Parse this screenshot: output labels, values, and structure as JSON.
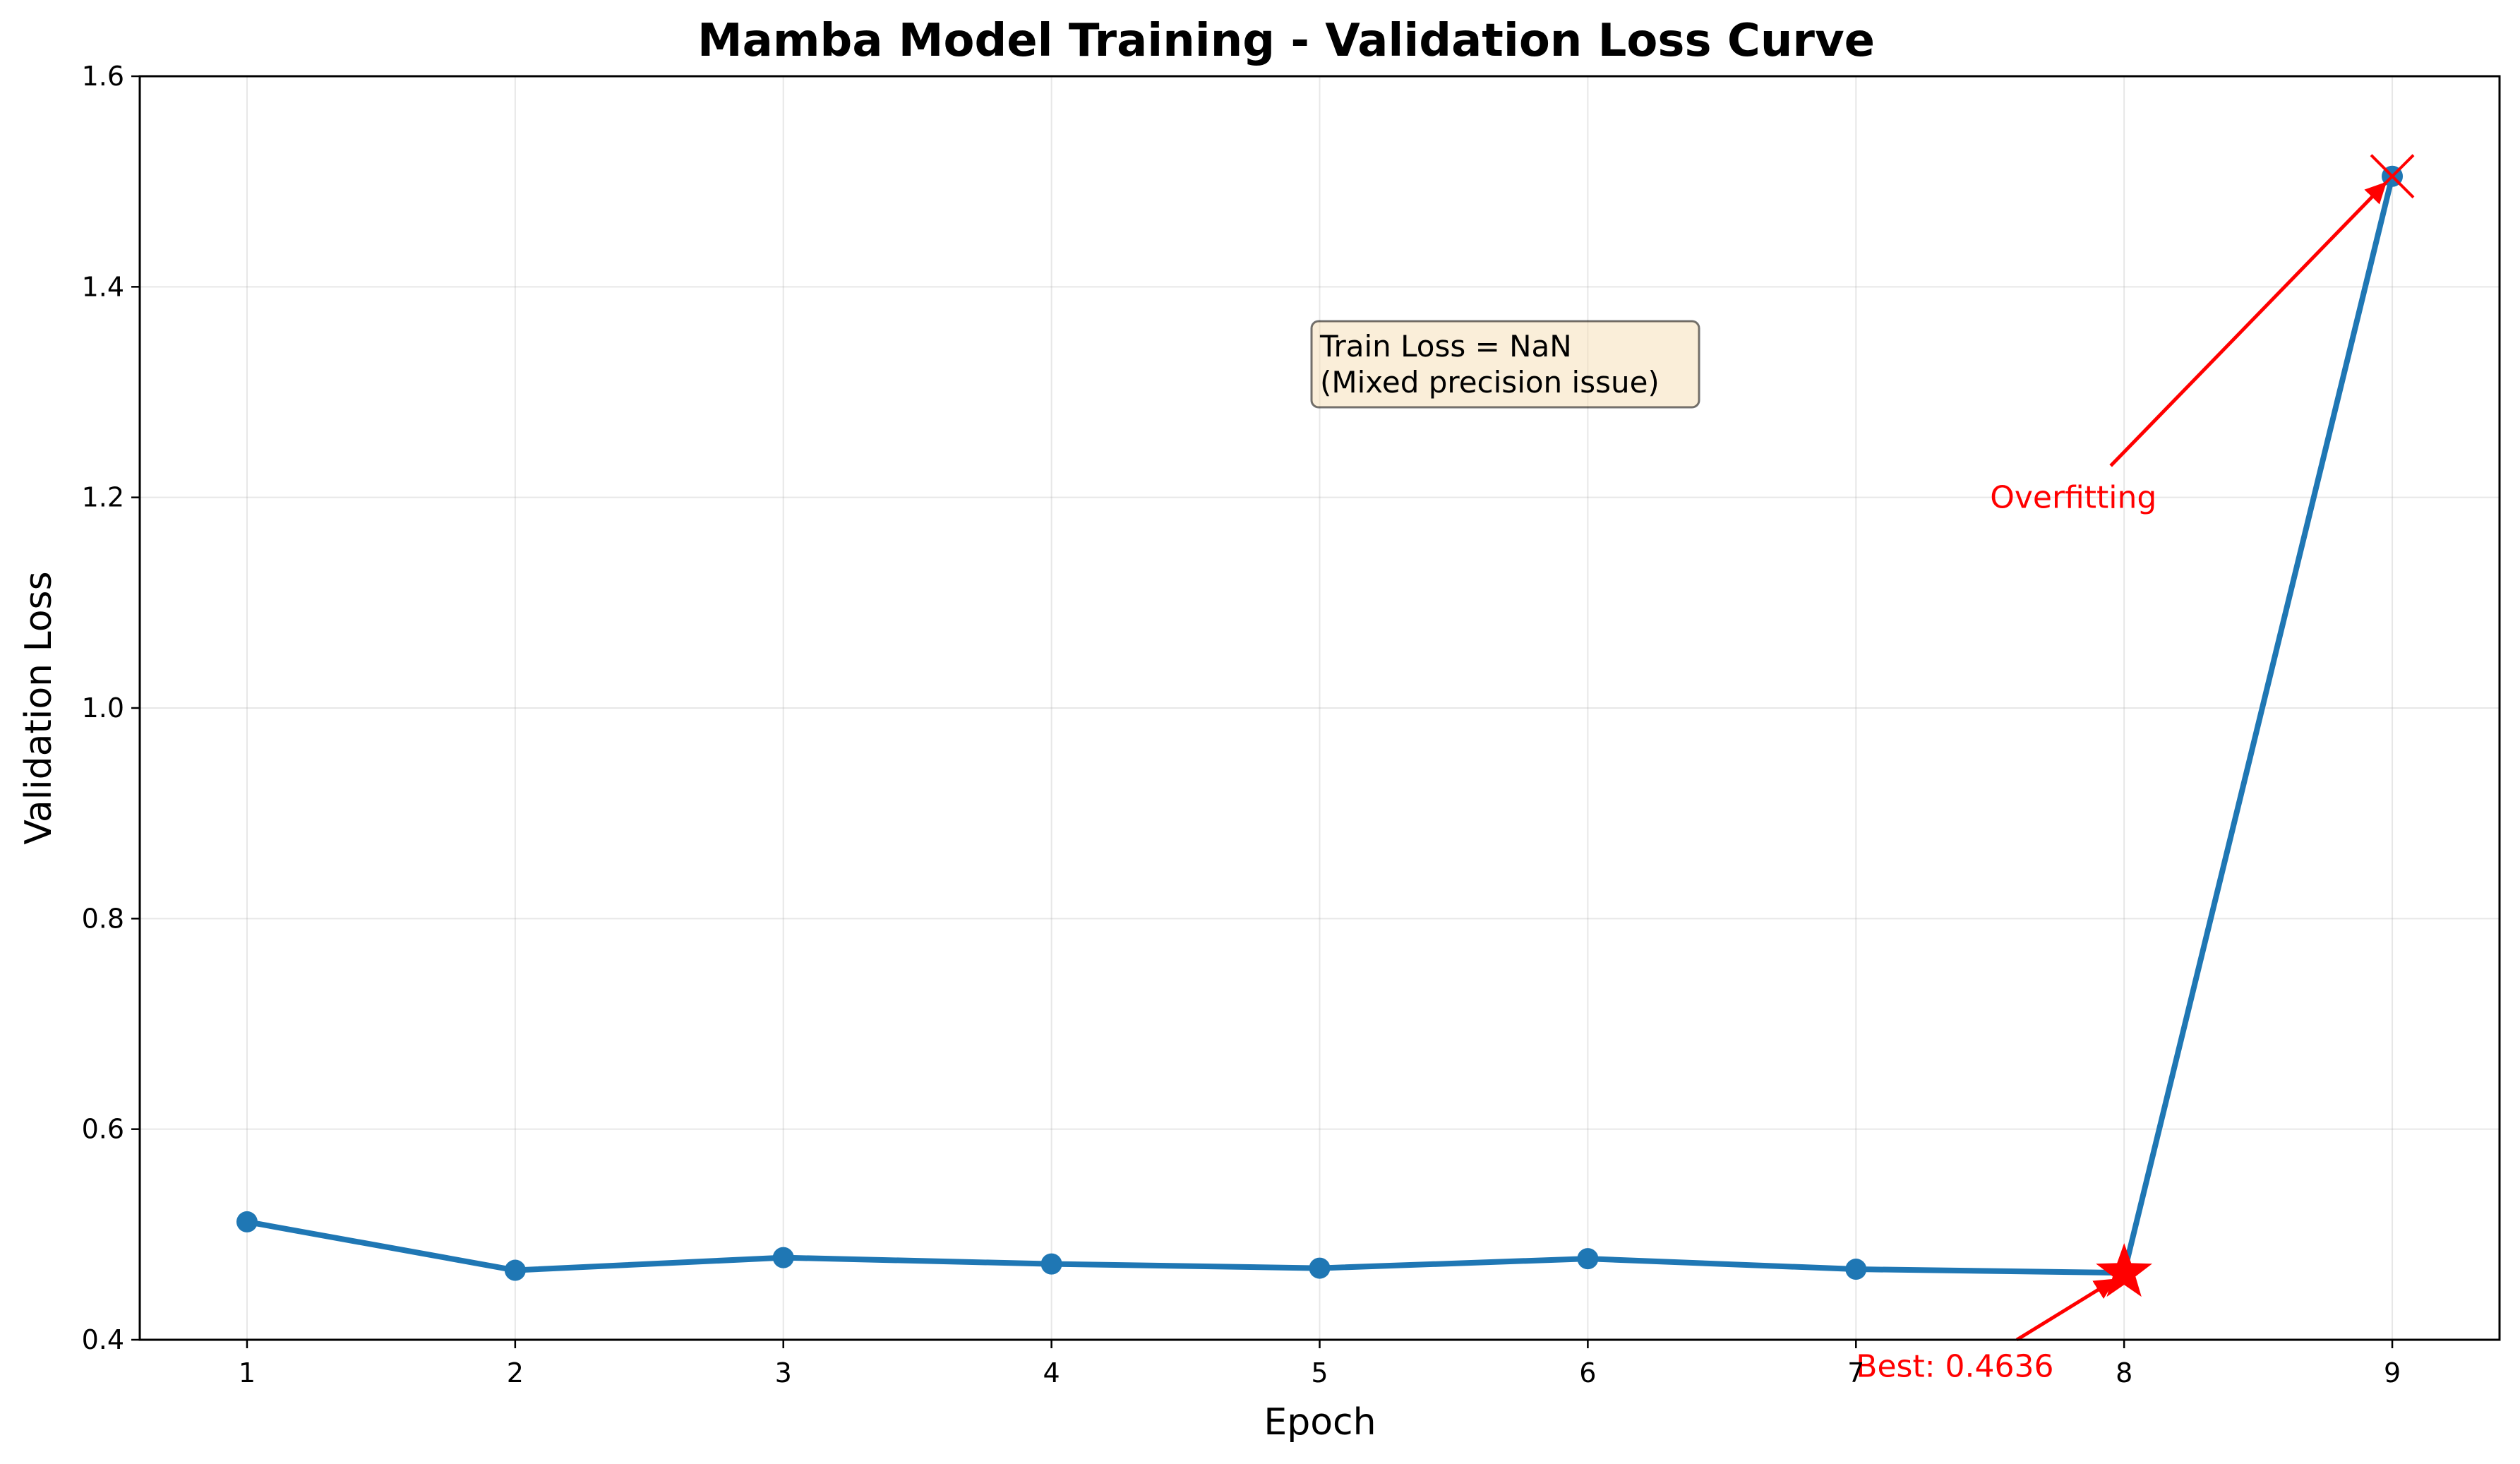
{
  "chart_data": {
    "type": "line",
    "title": "Mamba Model Training - Validation Loss Curve",
    "xlabel": "Epoch",
    "ylabel": "Validation Loss",
    "xlim": [
      0.6,
      9.4
    ],
    "ylim": [
      0.4,
      1.6
    ],
    "xticks": [
      "1",
      "2",
      "3",
      "4",
      "5",
      "6",
      "7",
      "8",
      "9"
    ],
    "yticks": [
      "0.4",
      "0.6",
      "0.8",
      "1.0",
      "1.2",
      "1.4",
      "1.6"
    ],
    "grid": true,
    "series": [
      {
        "x": [
          1,
          2,
          3,
          4,
          5,
          6,
          7,
          8,
          9
        ],
        "values": [
          0.512,
          0.466,
          0.478,
          0.472,
          0.468,
          0.477,
          0.467,
          0.4636,
          1.505
        ],
        "color": "#1f77b4"
      }
    ],
    "best_marker": {
      "x": 8,
      "y": 0.4636,
      "color": "#ff0000"
    },
    "overfit_marker": {
      "x": 9,
      "y": 1.505,
      "color": "#ff0000"
    },
    "annotations": {
      "best": {
        "text": "Best: 0.4636",
        "x": 7,
        "y": 0.375
      },
      "overfitting": {
        "text": "Overfitting",
        "x": 7.5,
        "y": 1.2
      },
      "note_line1": "Train Loss = NaN",
      "note_line2": "(Mixed precision issue)"
    }
  }
}
